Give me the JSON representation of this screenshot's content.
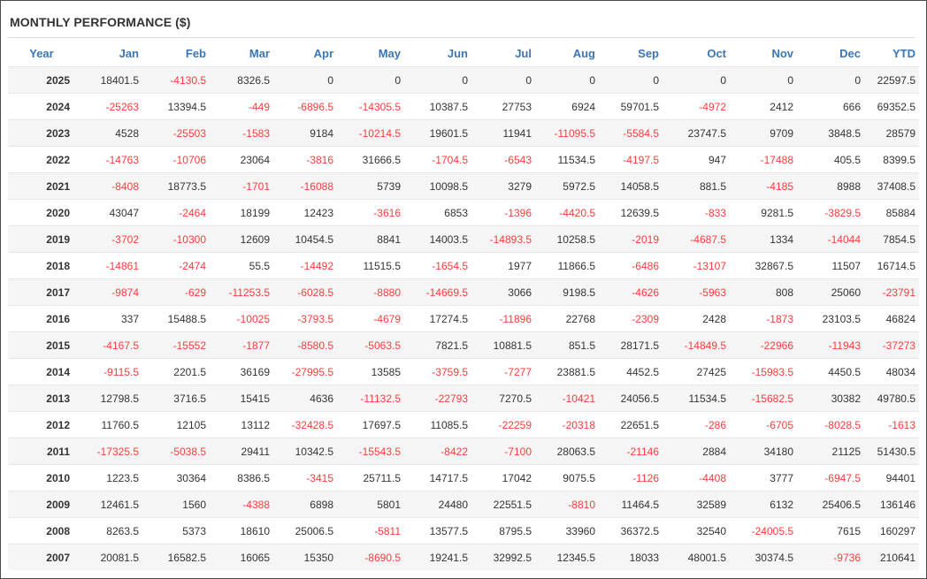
{
  "title": "MONTHLY PERFORMANCE ($)",
  "columns": [
    "Year",
    "Jan",
    "Feb",
    "Mar",
    "Apr",
    "May",
    "Jun",
    "Jul",
    "Aug",
    "Sep",
    "Oct",
    "Nov",
    "Dec",
    "YTD"
  ],
  "colors": {
    "header": "#3a76b5",
    "negative": "#ff3b3b",
    "text": "#333333",
    "stripe": "#f5f5f5"
  },
  "rows": [
    [
      "2025",
      "18401.5",
      "-4130.5",
      "8326.5",
      "0",
      "0",
      "0",
      "0",
      "0",
      "0",
      "0",
      "0",
      "0",
      "22597.5"
    ],
    [
      "2024",
      "-25263",
      "13394.5",
      "-449",
      "-6896.5",
      "-14305.5",
      "10387.5",
      "27753",
      "6924",
      "59701.5",
      "-4972",
      "2412",
      "666",
      "69352.5"
    ],
    [
      "2023",
      "4528",
      "-25503",
      "-1583",
      "9184",
      "-10214.5",
      "19601.5",
      "11941",
      "-11095.5",
      "-5584.5",
      "23747.5",
      "9709",
      "3848.5",
      "28579"
    ],
    [
      "2022",
      "-14763",
      "-10706",
      "23064",
      "-3816",
      "31666.5",
      "-1704.5",
      "-6543",
      "11534.5",
      "-4197.5",
      "947",
      "-17488",
      "405.5",
      "8399.5"
    ],
    [
      "2021",
      "-8408",
      "18773.5",
      "-1701",
      "-16088",
      "5739",
      "10098.5",
      "3279",
      "5972.5",
      "14058.5",
      "881.5",
      "-4185",
      "8988",
      "37408.5"
    ],
    [
      "2020",
      "43047",
      "-2464",
      "18199",
      "12423",
      "-3616",
      "6853",
      "-1396",
      "-4420.5",
      "12639.5",
      "-833",
      "9281.5",
      "-3829.5",
      "85884"
    ],
    [
      "2019",
      "-3702",
      "-10300",
      "12609",
      "10454.5",
      "8841",
      "14003.5",
      "-14893.5",
      "10258.5",
      "-2019",
      "-4687.5",
      "1334",
      "-14044",
      "7854.5"
    ],
    [
      "2018",
      "-14861",
      "-2474",
      "55.5",
      "-14492",
      "11515.5",
      "-1654.5",
      "1977",
      "11866.5",
      "-6486",
      "-13107",
      "32867.5",
      "11507",
      "16714.5"
    ],
    [
      "2017",
      "-9874",
      "-629",
      "-11253.5",
      "-6028.5",
      "-8880",
      "-14669.5",
      "3066",
      "9198.5",
      "-4626",
      "-5963",
      "808",
      "25060",
      "-23791"
    ],
    [
      "2016",
      "337",
      "15488.5",
      "-10025",
      "-3793.5",
      "-4679",
      "17274.5",
      "-11896",
      "22768",
      "-2309",
      "2428",
      "-1873",
      "23103.5",
      "46824"
    ],
    [
      "2015",
      "-4167.5",
      "-15552",
      "-1877",
      "-8580.5",
      "-5063.5",
      "7821.5",
      "10881.5",
      "851.5",
      "28171.5",
      "-14849.5",
      "-22966",
      "-11943",
      "-37273"
    ],
    [
      "2014",
      "-9115.5",
      "2201.5",
      "36169",
      "-27995.5",
      "13585",
      "-3759.5",
      "-7277",
      "23881.5",
      "4452.5",
      "27425",
      "-15983.5",
      "4450.5",
      "48034"
    ],
    [
      "2013",
      "12798.5",
      "3716.5",
      "15415",
      "4636",
      "-11132.5",
      "-22793",
      "7270.5",
      "-10421",
      "24056.5",
      "11534.5",
      "-15682.5",
      "30382",
      "49780.5"
    ],
    [
      "2012",
      "11760.5",
      "12105",
      "13112",
      "-32428.5",
      "17697.5",
      "11085.5",
      "-22259",
      "-20318",
      "22651.5",
      "-286",
      "-6705",
      "-8028.5",
      "-1613"
    ],
    [
      "2011",
      "-17325.5",
      "-5038.5",
      "29411",
      "10342.5",
      "-15543.5",
      "-8422",
      "-7100",
      "28063.5",
      "-21146",
      "2884",
      "34180",
      "21125",
      "51430.5"
    ],
    [
      "2010",
      "1223.5",
      "30364",
      "8386.5",
      "-3415",
      "25711.5",
      "14717.5",
      "17042",
      "9075.5",
      "-1126",
      "-4408",
      "3777",
      "-6947.5",
      "94401"
    ],
    [
      "2009",
      "12461.5",
      "1560",
      "-4388",
      "6898",
      "5801",
      "24480",
      "22551.5",
      "-8810",
      "11464.5",
      "32589",
      "6132",
      "25406.5",
      "136146"
    ],
    [
      "2008",
      "8263.5",
      "5373",
      "18610",
      "25006.5",
      "-5811",
      "13577.5",
      "8795.5",
      "33960",
      "36372.5",
      "32540",
      "-24005.5",
      "7615",
      "160297"
    ],
    [
      "2007",
      "20081.5",
      "16582.5",
      "16065",
      "15350",
      "-8690.5",
      "19241.5",
      "32992.5",
      "12345.5",
      "18033",
      "48001.5",
      "30374.5",
      "-9736",
      "210641"
    ]
  ]
}
